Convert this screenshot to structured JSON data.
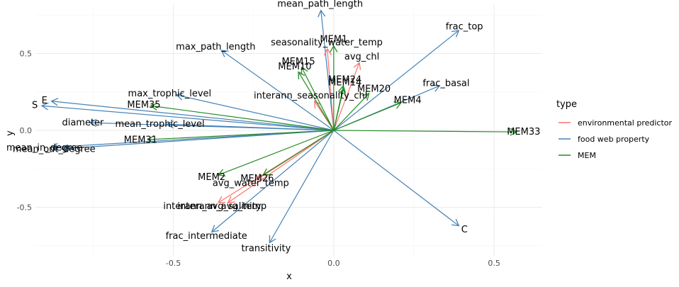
{
  "chart_data": {
    "type": "scatter",
    "subtype": "biplot-arrows",
    "xlabel": "x",
    "ylabel": "y",
    "xlim": [
      -0.93,
      0.65
    ],
    "ylim": [
      -0.82,
      0.82
    ],
    "x_ticks": [
      -0.5,
      0.0,
      0.5
    ],
    "x_tick_labels": [
      "-0.5",
      "0.0",
      "0.5"
    ],
    "y_ticks": [
      -0.5,
      0.0,
      0.5
    ],
    "y_tick_labels": [
      "-0.5",
      "0.0",
      "0.5"
    ],
    "grid": true,
    "legend": {
      "title": "type",
      "placement": "right",
      "entries": [
        {
          "label": "environmental predictor",
          "color": "#F8766D"
        },
        {
          "label": "food web property",
          "color": "#4682B4"
        },
        {
          "label": "MEM",
          "color": "#228B22"
        }
      ]
    },
    "arrows": [
      {
        "label": "mean_path_length",
        "type": "food web property",
        "x": -0.04,
        "y": 0.78
      },
      {
        "label": "frac_top",
        "type": "food web property",
        "x": 0.39,
        "y": 0.65
      },
      {
        "label": "max_path_length",
        "type": "food web property",
        "x": -0.35,
        "y": 0.52
      },
      {
        "label": "frac_basal",
        "type": "food web property",
        "x": 0.33,
        "y": 0.29
      },
      {
        "label": "max_trophic_level",
        "type": "food web property",
        "x": -0.49,
        "y": 0.23
      },
      {
        "label": "E",
        "type": "food web property",
        "x": -0.88,
        "y": 0.19
      },
      {
        "label": "S",
        "type": "food web property",
        "x": -0.91,
        "y": 0.16
      },
      {
        "label": "diameter",
        "type": "food web property",
        "x": -0.76,
        "y": 0.05
      },
      {
        "label": "mean_trophic_level",
        "type": "food web property",
        "x": -0.52,
        "y": 0.04
      },
      {
        "label": "mean_in_degree",
        "type": "food web property",
        "x": -0.88,
        "y": -0.11
      },
      {
        "label": "mean_out_degree",
        "type": "food web property",
        "x": -0.85,
        "y": -0.12
      },
      {
        "label": "C",
        "type": "food web property",
        "x": 0.39,
        "y": -0.62
      },
      {
        "label": "frac_intermediate",
        "type": "food web property",
        "x": -0.38,
        "y": -0.66
      },
      {
        "label": "transitivity",
        "type": "food web property",
        "x": -0.2,
        "y": -0.73
      },
      {
        "label": "seasonality_water_temp",
        "type": "environmental predictor",
        "x": -0.02,
        "y": 0.53
      },
      {
        "label": "avg_chl",
        "type": "environmental predictor",
        "x": 0.08,
        "y": 0.44
      },
      {
        "label": "interann_seasonality_chl",
        "type": "environmental predictor",
        "x": -0.06,
        "y": 0.19
      },
      {
        "label": "avg_water_temp",
        "type": "environmental predictor",
        "x": -0.24,
        "y": -0.32
      },
      {
        "label": "interann_avg_salinity",
        "type": "environmental predictor",
        "x": -0.36,
        "y": -0.47
      },
      {
        "label": "interann_avg_temp",
        "type": "environmental predictor",
        "x": -0.33,
        "y": -0.47
      },
      {
        "label": "MEM1",
        "type": "MEM",
        "x": 0.0,
        "y": 0.55
      },
      {
        "label": "MEM15",
        "type": "MEM",
        "x": -0.1,
        "y": 0.41
      },
      {
        "label": "MEM10",
        "type": "MEM",
        "x": -0.11,
        "y": 0.38
      },
      {
        "label": "MEM24",
        "type": "MEM",
        "x": 0.03,
        "y": 0.29
      },
      {
        "label": "MEM14",
        "type": "MEM",
        "x": 0.03,
        "y": 0.27
      },
      {
        "label": "MEM20",
        "type": "MEM",
        "x": 0.11,
        "y": 0.24
      },
      {
        "label": "MEM4",
        "type": "MEM",
        "x": 0.21,
        "y": 0.18
      },
      {
        "label": "MEM35",
        "type": "MEM",
        "x": -0.57,
        "y": 0.16
      },
      {
        "label": "MEM33",
        "type": "MEM",
        "x": 0.57,
        "y": -0.01
      },
      {
        "label": "MEM31",
        "type": "MEM",
        "x": -0.58,
        "y": -0.06
      },
      {
        "label": "MEM2",
        "type": "MEM",
        "x": -0.36,
        "y": -0.29
      },
      {
        "label": "MEM26",
        "type": "MEM",
        "x": -0.22,
        "y": -0.29
      }
    ]
  }
}
